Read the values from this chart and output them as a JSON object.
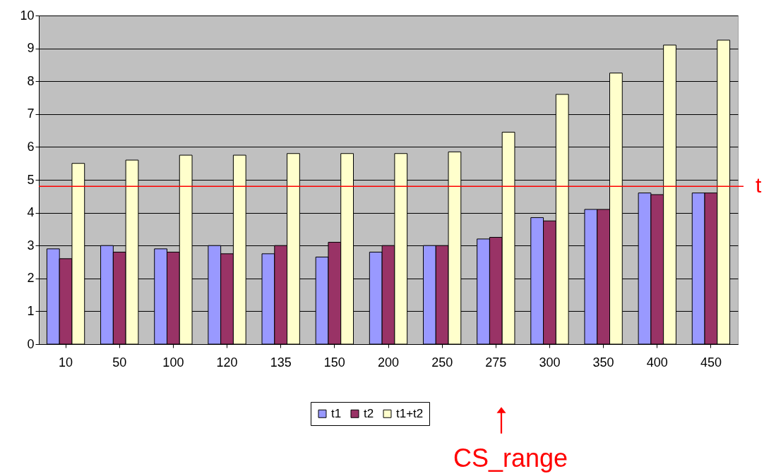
{
  "chart_data": {
    "type": "bar",
    "categories": [
      "10",
      "50",
      "100",
      "120",
      "135",
      "150",
      "200",
      "250",
      "275",
      "300",
      "350",
      "400",
      "450"
    ],
    "series": [
      {
        "name": "t1",
        "color": "#9999ff",
        "values": [
          2.9,
          3.0,
          2.9,
          3.0,
          2.75,
          2.65,
          2.8,
          3.0,
          3.2,
          3.85,
          4.1,
          4.6,
          4.6
        ]
      },
      {
        "name": "t2",
        "color": "#993366",
        "values": [
          2.6,
          2.8,
          2.8,
          2.75,
          3.0,
          3.1,
          3.0,
          3.0,
          3.25,
          3.75,
          4.1,
          4.55,
          4.6
        ]
      },
      {
        "name": "t1+t2",
        "color": "#ffffcc",
        "values": [
          5.5,
          5.6,
          5.75,
          5.75,
          5.8,
          5.8,
          5.8,
          5.85,
          6.45,
          7.6,
          8.25,
          9.1,
          9.25
        ]
      }
    ],
    "ylim": [
      0,
      10
    ],
    "yticks": [
      0,
      1,
      2,
      3,
      4,
      5,
      6,
      7,
      8,
      9,
      10
    ],
    "grid": "y",
    "legend": "bottom",
    "ref_lines": [
      {
        "axis": "y",
        "value": 4.8,
        "label": "t",
        "color": "#ff0000"
      }
    ],
    "annotations": [
      "CS_range"
    ]
  }
}
